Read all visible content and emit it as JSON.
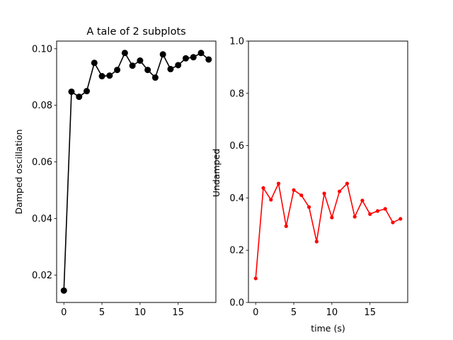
{
  "chart_data": [
    {
      "type": "line",
      "title": "A tale of 2 subplots",
      "xlabel": "",
      "ylabel": "Damped oscillation",
      "xlim": [
        -0.95,
        19.95
      ],
      "ylim": [
        0.0103,
        0.1027
      ],
      "xticks": [
        0,
        5,
        10,
        15
      ],
      "yticks": [
        0.02,
        0.04,
        0.06,
        0.08,
        0.1
      ],
      "ytick_labels": [
        "0.02",
        "0.04",
        "0.06",
        "0.08",
        "0.10"
      ],
      "grid": false,
      "series": [
        {
          "color": "#000000",
          "marker": "circle",
          "x": [
            0,
            1,
            2,
            3,
            4,
            5,
            6,
            7,
            8,
            9,
            10,
            11,
            12,
            13,
            14,
            15,
            16,
            17,
            18,
            19
          ],
          "y": [
            0.0145,
            0.0848,
            0.083,
            0.085,
            0.095,
            0.0903,
            0.0905,
            0.0925,
            0.0985,
            0.094,
            0.0958,
            0.0925,
            0.0898,
            0.098,
            0.0928,
            0.0942,
            0.0966,
            0.097,
            0.0985,
            0.0962
          ]
        }
      ]
    },
    {
      "type": "line",
      "title": "",
      "xlabel": "time (s)",
      "ylabel": "Undamped",
      "xlim": [
        -0.95,
        19.95
      ],
      "ylim": [
        0.0,
        1.0
      ],
      "xticks": [
        0,
        5,
        10,
        15
      ],
      "yticks": [
        0.0,
        0.2,
        0.4,
        0.6,
        0.8,
        1.0
      ],
      "ytick_labels": [
        "0.0",
        "0.2",
        "0.4",
        "0.6",
        "0.8",
        "1.0"
      ],
      "grid": false,
      "series": [
        {
          "color": "#ff0000",
          "marker": "point",
          "x": [
            0,
            1,
            2,
            3,
            4,
            5,
            6,
            7,
            8,
            9,
            10,
            11,
            12,
            13,
            14,
            15,
            16,
            17,
            18,
            19
          ],
          "y": [
            0.092,
            0.438,
            0.393,
            0.455,
            0.292,
            0.43,
            0.41,
            0.365,
            0.233,
            0.417,
            0.325,
            0.425,
            0.455,
            0.328,
            0.39,
            0.338,
            0.35,
            0.358,
            0.306,
            0.32
          ]
        }
      ]
    }
  ]
}
